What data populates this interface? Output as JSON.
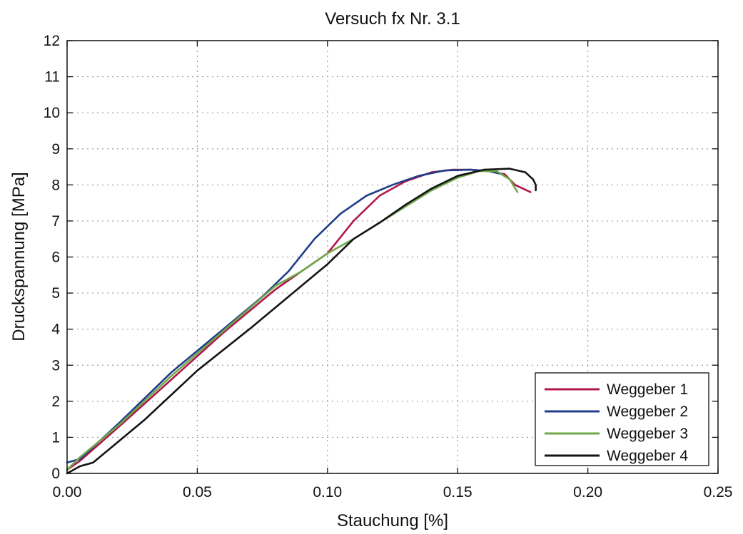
{
  "chart_data": {
    "type": "line",
    "title": "Versuch fx Nr. 3.1",
    "xlabel": "Stauchung [%]",
    "ylabel": "Druckspannung [MPa]",
    "xlim": [
      0,
      0.25
    ],
    "ylim": [
      0,
      12
    ],
    "x_ticks": [
      0.0,
      0.05,
      0.1,
      0.15,
      0.2,
      0.25
    ],
    "x_tick_labels": [
      "0.00",
      "0.05",
      "0.10",
      "0.15",
      "0.20",
      "0.25"
    ],
    "y_ticks": [
      0,
      1,
      2,
      3,
      4,
      5,
      6,
      7,
      8,
      9,
      10,
      11,
      12
    ],
    "y_tick_labels": [
      "0",
      "1",
      "2",
      "3",
      "4",
      "5",
      "6",
      "7",
      "8",
      "9",
      "10",
      "11",
      "12"
    ],
    "grid": true,
    "legend_position": "bottom-right",
    "series": [
      {
        "name": "Weggeber 1",
        "color": "#b0184a",
        "x": [
          0.0,
          0.005,
          0.02,
          0.04,
          0.06,
          0.08,
          0.09,
          0.1,
          0.11,
          0.12,
          0.13,
          0.14,
          0.148,
          0.155,
          0.162,
          0.168,
          0.172,
          0.178
        ],
        "y": [
          0.1,
          0.35,
          1.3,
          2.6,
          3.9,
          5.1,
          5.6,
          6.1,
          7.0,
          7.7,
          8.1,
          8.35,
          8.42,
          8.42,
          8.38,
          8.3,
          8.0,
          7.8
        ]
      },
      {
        "name": "Weggeber 2",
        "color": "#1f3d8a",
        "x": [
          0.0,
          0.005,
          0.02,
          0.04,
          0.06,
          0.075,
          0.085,
          0.095,
          0.105,
          0.115,
          0.125,
          0.135,
          0.145,
          0.155,
          0.162,
          0.167
        ],
        "y": [
          0.3,
          0.4,
          1.4,
          2.8,
          4.0,
          4.9,
          5.6,
          6.5,
          7.2,
          7.7,
          8.0,
          8.25,
          8.4,
          8.42,
          8.38,
          8.3
        ]
      },
      {
        "name": "Weggeber 3",
        "color": "#6fa84a",
        "x": [
          0.0,
          0.005,
          0.02,
          0.04,
          0.06,
          0.08,
          0.09,
          0.1,
          0.11,
          0.12,
          0.13,
          0.14,
          0.15,
          0.158,
          0.165,
          0.17,
          0.173
        ],
        "y": [
          0.1,
          0.45,
          1.35,
          2.7,
          3.95,
          5.2,
          5.6,
          6.1,
          6.5,
          6.95,
          7.4,
          7.85,
          8.2,
          8.38,
          8.38,
          8.15,
          7.8
        ]
      },
      {
        "name": "Weggeber 4",
        "color": "#141414",
        "x": [
          0.0,
          0.005,
          0.01,
          0.03,
          0.05,
          0.07,
          0.09,
          0.1,
          0.11,
          0.12,
          0.13,
          0.14,
          0.15,
          0.16,
          0.17,
          0.176,
          0.179,
          0.18,
          0.18
        ],
        "y": [
          0.0,
          0.2,
          0.3,
          1.5,
          2.85,
          4.0,
          5.2,
          5.8,
          6.5,
          6.95,
          7.45,
          7.9,
          8.25,
          8.42,
          8.45,
          8.35,
          8.15,
          8.0,
          7.85
        ]
      }
    ]
  }
}
